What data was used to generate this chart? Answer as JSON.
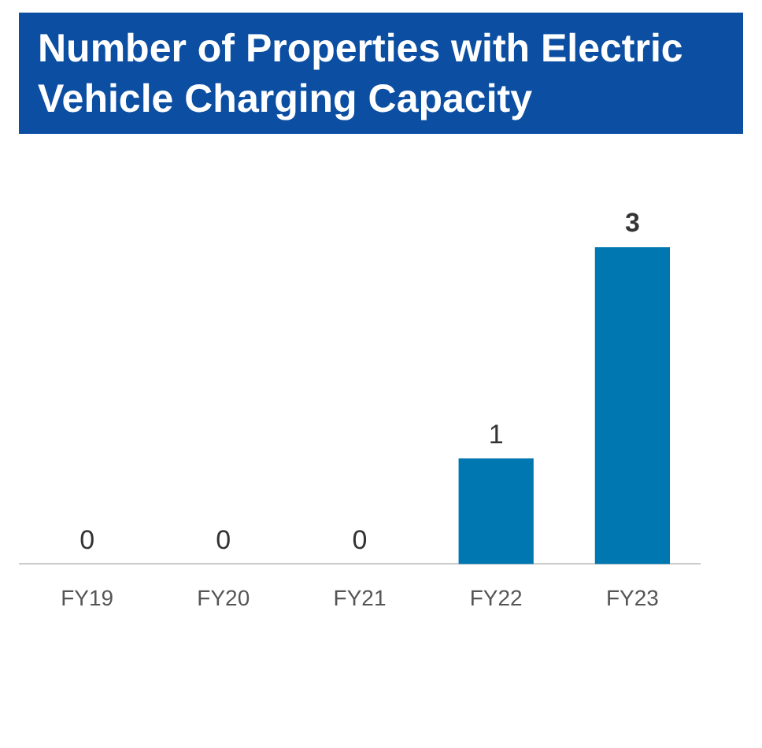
{
  "chart_data": {
    "type": "bar",
    "title": "Number of Properties with Electric Vehicle Charging Capacity",
    "categories": [
      "FY19",
      "FY20",
      "FY21",
      "FY22",
      "FY23"
    ],
    "values": [
      0,
      0,
      0,
      1,
      3
    ],
    "color": "#0077b0",
    "data_labels": true,
    "grid": false,
    "legend": false
  }
}
